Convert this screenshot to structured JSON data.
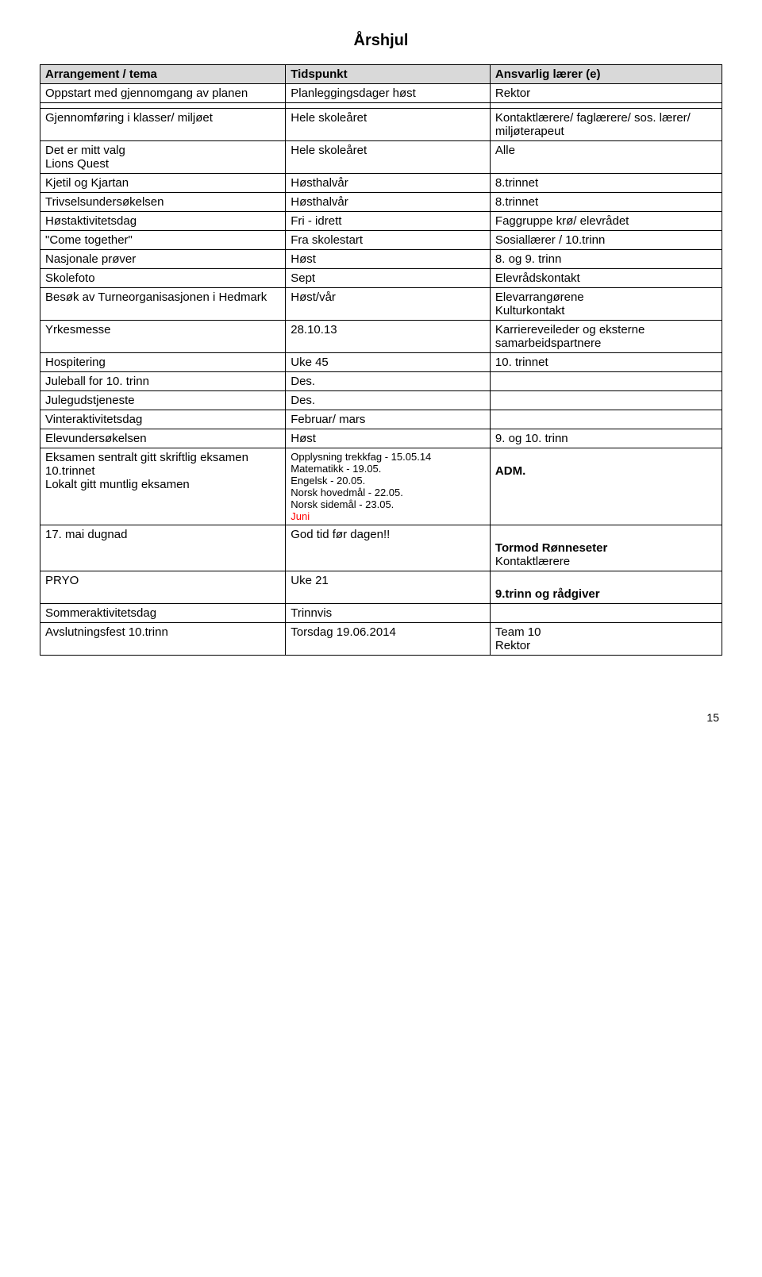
{
  "title": "Årshjul",
  "headers": [
    "Arrangement / tema",
    "Tidspunkt",
    "Ansvarlig lærer (e)"
  ],
  "rows": [
    {
      "c1": "Oppstart med gjennomgang av planen",
      "c2": "Planleggingsdager høst",
      "c3": "Rektor"
    },
    {
      "c1": "",
      "c2": "",
      "c3": ""
    },
    {
      "c1": "Gjennomføring i klasser/ miljøet",
      "c2": "Hele skoleåret",
      "c3": "Kontaktlærere/ faglærere/ sos. lærer/ miljøterapeut"
    },
    {
      "c1": "Det er mitt valg\nLions Quest",
      "c2": "Hele skoleåret",
      "c3": "Alle"
    },
    {
      "c1": "Kjetil og Kjartan",
      "c2": "Høsthalvår",
      "c3": "8.trinnet"
    },
    {
      "c1": "Trivselsundersøkelsen",
      "c2": "Høsthalvår",
      "c3": "8.trinnet"
    },
    {
      "c1": "Høstaktivitetsdag",
      "c2": "Fri - idrett",
      "c3": "Faggruppe krø/ elevrådet"
    },
    {
      "c1": "\"Come together\"",
      "c2": "Fra skolestart",
      "c3": "Sosiallærer / 10.trinn"
    },
    {
      "c1": "Nasjonale prøver",
      "c2": "Høst",
      "c3": "8. og 9. trinn"
    },
    {
      "c1": "Skolefoto",
      "c2": "Sept",
      "c3": "Elevrådskontakt"
    },
    {
      "c1": "Besøk av Turneorganisasjonen i Hedmark",
      "c2": "Høst/vår",
      "c3": "Elevarrangørene\nKulturkontakt"
    },
    {
      "c1": "Yrkesmesse",
      "c2": "28.10.13",
      "c3": "Karriereveileder og eksterne samarbeidspartnere"
    },
    {
      "c1": "Hospitering",
      "c2": "Uke 45",
      "c3": "10. trinnet"
    },
    {
      "c1": "Juleball for 10. trinn",
      "c2": "Des.",
      "c3": ""
    },
    {
      "c1": "Julegudstjeneste",
      "c2": "Des.",
      "c3": ""
    },
    {
      "c1": "Vinteraktivitetsdag",
      "c2": "Februar/ mars",
      "c3": ""
    },
    {
      "c1": "Elevundersøkelsen",
      "c2": "Høst",
      "c3": "9. og 10. trinn"
    }
  ],
  "eksamen": {
    "c1": "Eksamen sentralt gitt skriftlig eksamen 10.trinnet\nLokalt gitt muntlig eksamen",
    "c2_lines": [
      "Opplysning trekkfag - 15.05.14",
      "Matematikk - 19.05.",
      "Engelsk - 20.05.",
      "Norsk  hovedmål - 22.05.",
      "Norsk  sidemål - 23.05."
    ],
    "c2_juni": "Juni",
    "c3": "ADM."
  },
  "dugnad": {
    "c1": "17. mai dugnad",
    "c2": "God tid før dagen!!",
    "c3_l1": "Tormod Rønneseter",
    "c3_l2": "Kontaktlærere"
  },
  "pryo": {
    "c1": "PRYO",
    "c2": "Uke 21",
    "c3": "9.trinn og rådgiver"
  },
  "sommer": {
    "c1": "Sommeraktivitetsdag",
    "c2": "Trinnvis",
    "c3": ""
  },
  "avslutning": {
    "c1": "Avslutningsfest 10.trinn",
    "c2": "Torsdag 19.06.2014",
    "c3": "Team 10\nRektor"
  },
  "page_number": "15",
  "style": {
    "background_color": "#ffffff",
    "header_bg": "#d9d9d9",
    "border_color": "#000000",
    "text_color": "#000000",
    "red": "#ff0000",
    "font_size_body": 15,
    "font_size_title": 20,
    "eksamen_c2_fontsize": 13
  }
}
